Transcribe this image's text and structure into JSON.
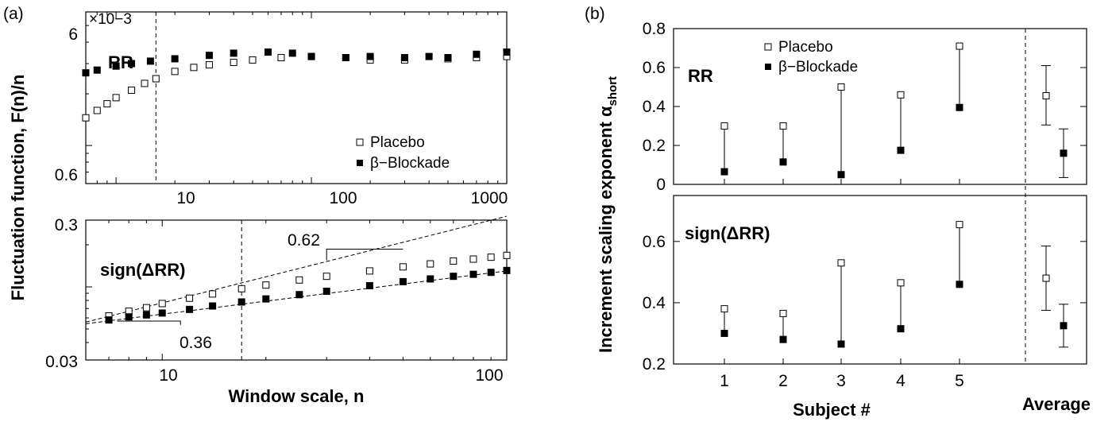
{
  "panel_labels": [
    "(a)",
    "(b)"
  ],
  "chart_data": [
    {
      "type": "scatter",
      "panel": "(a)",
      "subplot": "top",
      "inner_label": "RR",
      "ylabel": "Fluctuation function, F(n)/n",
      "xscale": "log",
      "yscale": "log",
      "xlim": [
        7,
        1000
      ],
      "ylim": [
        0.6,
        6
      ],
      "multiplier_label": "×10−3",
      "xticks": [
        "10",
        "100",
        "1000"
      ],
      "yticks": [
        "0.6",
        "6"
      ],
      "vline_x": 16,
      "legend": [
        "Placebo",
        "β−Blockade"
      ],
      "series": [
        {
          "name": "Placebo",
          "marker": "open-square",
          "points": [
            [
              7,
              1.45
            ],
            [
              8,
              1.6
            ],
            [
              9,
              1.75
            ],
            [
              10,
              1.9
            ],
            [
              12,
              2.1
            ],
            [
              14,
              2.3
            ],
            [
              16,
              2.45
            ],
            [
              20,
              2.7
            ],
            [
              25,
              2.85
            ],
            [
              30,
              2.95
            ],
            [
              40,
              3.05
            ],
            [
              50,
              3.15
            ],
            [
              70,
              3.25
            ],
            [
              100,
              3.3
            ],
            [
              150,
              3.25
            ],
            [
              200,
              3.15
            ],
            [
              300,
              3.15
            ],
            [
              500,
              3.2
            ],
            [
              700,
              3.25
            ],
            [
              1000,
              3.3
            ]
          ]
        },
        {
          "name": "β−Blockade",
          "marker": "filled-square",
          "points": [
            [
              7,
              2.65
            ],
            [
              8,
              2.75
            ],
            [
              10,
              2.9
            ],
            [
              12,
              3.0
            ],
            [
              15,
              3.1
            ],
            [
              20,
              3.2
            ],
            [
              30,
              3.35
            ],
            [
              40,
              3.45
            ],
            [
              60,
              3.5
            ],
            [
              80,
              3.45
            ],
            [
              100,
              3.3
            ],
            [
              150,
              3.25
            ],
            [
              200,
              3.3
            ],
            [
              300,
              3.25
            ],
            [
              400,
              3.3
            ],
            [
              500,
              3.25
            ],
            [
              700,
              3.4
            ],
            [
              1000,
              3.5
            ]
          ]
        }
      ]
    },
    {
      "type": "scatter",
      "panel": "(a)",
      "subplot": "bottom",
      "inner_label": "sign(ΔRR)",
      "xlabel": "Window scale, n",
      "xscale": "log",
      "yscale": "log",
      "xlim": [
        6,
        100
      ],
      "ylim": [
        0.03,
        0.3
      ],
      "xticks": [
        "10",
        "100"
      ],
      "yticks": [
        "0.03",
        "0.3"
      ],
      "vline_x": 17,
      "annotations": [
        "0.62",
        "0.36"
      ],
      "series": [
        {
          "name": "Placebo",
          "marker": "open-square",
          "points": [
            [
              7,
              0.062
            ],
            [
              8,
              0.067
            ],
            [
              9,
              0.071
            ],
            [
              10,
              0.076
            ],
            [
              12,
              0.083
            ],
            [
              14,
              0.089
            ],
            [
              17,
              0.097
            ],
            [
              20,
              0.103
            ],
            [
              25,
              0.112
            ],
            [
              30,
              0.119
            ],
            [
              40,
              0.13
            ],
            [
              50,
              0.139
            ],
            [
              60,
              0.146
            ],
            [
              70,
              0.153
            ],
            [
              80,
              0.158
            ],
            [
              90,
              0.163
            ],
            [
              100,
              0.168
            ]
          ]
        },
        {
          "name": "β−Blockade",
          "marker": "filled-square",
          "points": [
            [
              7,
              0.058
            ],
            [
              8,
              0.061
            ],
            [
              9,
              0.063
            ],
            [
              10,
              0.065
            ],
            [
              12,
              0.069
            ],
            [
              14,
              0.073
            ],
            [
              17,
              0.078
            ],
            [
              20,
              0.082
            ],
            [
              25,
              0.088
            ],
            [
              30,
              0.093
            ],
            [
              40,
              0.102
            ],
            [
              50,
              0.109
            ],
            [
              60,
              0.114
            ],
            [
              70,
              0.119
            ],
            [
              80,
              0.123
            ],
            [
              90,
              0.127
            ],
            [
              100,
              0.131
            ]
          ]
        }
      ]
    },
    {
      "type": "scatter",
      "panel": "(b)",
      "subplot": "top",
      "inner_label": "RR",
      "ylabel": "Increment scaling exponent α",
      "ylabel_sub": "short",
      "ylim": [
        0,
        0.8
      ],
      "yticks": [
        "0",
        "0.2",
        "0.4",
        "0.6",
        "0.8"
      ],
      "categories": [
        "1",
        "2",
        "3",
        "4",
        "5",
        "Average"
      ],
      "legend": [
        "Placebo",
        "β−Blockade"
      ],
      "series": [
        {
          "name": "Placebo",
          "values": [
            0.3,
            0.3,
            0.5,
            0.46,
            0.71,
            0.455
          ],
          "avg_err": [
            0.305,
            0.61
          ]
        },
        {
          "name": "β−Blockade",
          "values": [
            0.065,
            0.115,
            0.05,
            0.175,
            0.395,
            0.16
          ],
          "avg_err": [
            0.035,
            0.285
          ]
        }
      ]
    },
    {
      "type": "scatter",
      "panel": "(b)",
      "subplot": "bottom",
      "inner_label": "sign(ΔRR)",
      "xlabel": "Subject #",
      "ylim": [
        0.2,
        0.75
      ],
      "yticks": [
        "0.2",
        "0.4",
        "0.6"
      ],
      "categories": [
        "1",
        "2",
        "3",
        "4",
        "5",
        "Average"
      ],
      "series": [
        {
          "name": "Placebo",
          "values": [
            0.38,
            0.365,
            0.53,
            0.465,
            0.655,
            0.48
          ],
          "avg_err": [
            0.375,
            0.585
          ]
        },
        {
          "name": "β−Blockade",
          "values": [
            0.3,
            0.28,
            0.265,
            0.315,
            0.46,
            0.325
          ],
          "avg_err": [
            0.255,
            0.395
          ]
        }
      ]
    }
  ]
}
